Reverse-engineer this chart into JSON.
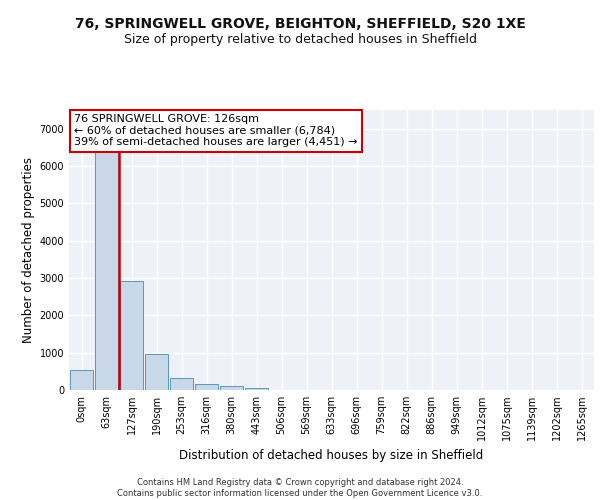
{
  "title_line1": "76, SPRINGWELL GROVE, BEIGHTON, SHEFFIELD, S20 1XE",
  "title_line2": "Size of property relative to detached houses in Sheffield",
  "xlabel": "Distribution of detached houses by size in Sheffield",
  "ylabel": "Number of detached properties",
  "bar_labels": [
    "0sqm",
    "63sqm",
    "127sqm",
    "190sqm",
    "253sqm",
    "316sqm",
    "380sqm",
    "443sqm",
    "506sqm",
    "569sqm",
    "633sqm",
    "696sqm",
    "759sqm",
    "822sqm",
    "886sqm",
    "949sqm",
    "1012sqm",
    "1075sqm",
    "1139sqm",
    "1202sqm",
    "1265sqm"
  ],
  "bar_values": [
    530,
    6430,
    2930,
    960,
    330,
    160,
    95,
    65,
    0,
    0,
    0,
    0,
    0,
    0,
    0,
    0,
    0,
    0,
    0,
    0,
    0
  ],
  "bar_color": "#c8d8e8",
  "bar_edge_color": "#5599bb",
  "annotation_text": "76 SPRINGWELL GROVE: 126sqm\n← 60% of detached houses are smaller (6,784)\n39% of semi-detached houses are larger (4,451) →",
  "annotation_box_color": "#ffffff",
  "annotation_box_edge": "#cc0000",
  "vline_color": "#cc0000",
  "ylim": [
    0,
    7500
  ],
  "yticks": [
    0,
    1000,
    2000,
    3000,
    4000,
    5000,
    6000,
    7000
  ],
  "footer_text": "Contains HM Land Registry data © Crown copyright and database right 2024.\nContains public sector information licensed under the Open Government Licence v3.0.",
  "background_color": "#eef2f8",
  "grid_color": "#ffffff",
  "title_fontsize": 10,
  "subtitle_fontsize": 9,
  "tick_fontsize": 7,
  "ylabel_fontsize": 8.5,
  "xlabel_fontsize": 8.5,
  "annotation_fontsize": 8
}
